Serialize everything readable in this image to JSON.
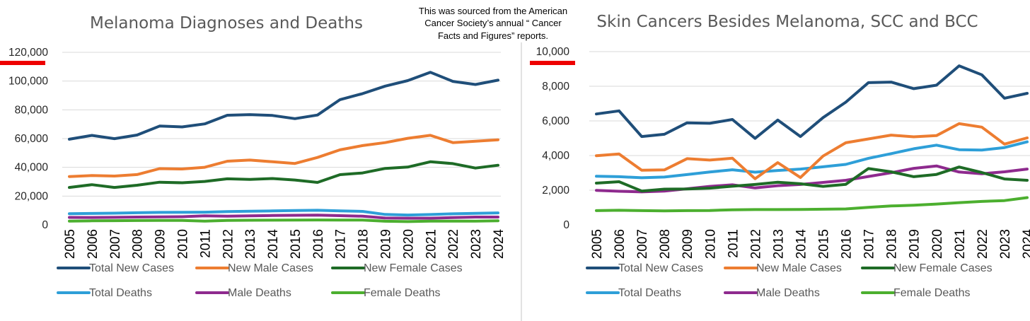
{
  "note": [
    "This was sourced from the American",
    "Cancer Society’s annual “ Cancer",
    "Facts and Figures” reports."
  ],
  "colors": {
    "Total New Cases": "#1f4e79",
    "New Male Cases": "#ed7d31",
    "New Female Cases": "#1e6b26",
    "Total Deaths": "#2e9fd8",
    "Male Deaths": "#8e2a8e",
    "Female Deaths": "#4caf2f",
    "marker": "#ee0000"
  },
  "chart_data": [
    {
      "type": "line",
      "title": "Melanoma Diagnoses and Deaths",
      "xlabel": "",
      "ylabel": "",
      "ylim": [
        0,
        120000
      ],
      "yticks": [
        "0",
        "20,000",
        "40,000",
        "60,000",
        "80,000",
        "100,000",
        "120,000"
      ],
      "grid": "horizontal",
      "legend": "bottom",
      "categories": [
        "2005",
        "2006",
        "2007",
        "2008",
        "2009",
        "2010",
        "2011",
        "2012",
        "2013",
        "2014",
        "2015",
        "2016",
        "2017",
        "2018",
        "2019",
        "2020",
        "2021",
        "2022",
        "2023",
        "2024"
      ],
      "series": [
        {
          "name": "Total New Cases",
          "values": [
            59580,
            62190,
            59940,
            62480,
            68720,
            68130,
            70230,
            76250,
            76690,
            76100,
            73870,
            76380,
            87110,
            91270,
            96480,
            100350,
            106110,
            99780,
            97610,
            100640
          ]
        },
        {
          "name": "New Male Cases",
          "values": [
            33580,
            34260,
            33910,
            34950,
            39080,
            38870,
            40010,
            44250,
            45060,
            43890,
            42670,
            46870,
            52170,
            55150,
            57220,
            60190,
            62260,
            57180,
            58120,
            59170
          ]
        },
        {
          "name": "New Female Cases",
          "values": [
            26000,
            27930,
            26030,
            27530,
            29640,
            29260,
            30220,
            32000,
            31630,
            32210,
            31200,
            29510,
            34940,
            36120,
            39260,
            40160,
            43850,
            42600,
            39490,
            41470
          ]
        },
        {
          "name": "Total Deaths",
          "values": [
            7770,
            7910,
            8110,
            8420,
            8650,
            8700,
            8790,
            9180,
            9480,
            9710,
            9940,
            10130,
            9730,
            9320,
            7230,
            6850,
            7180,
            7650,
            7990,
            8290
          ]
        },
        {
          "name": "Male Deaths",
          "values": [
            5160,
            5100,
            5220,
            5400,
            5550,
            5670,
            6240,
            6060,
            6280,
            6470,
            6640,
            6750,
            6380,
            5990,
            4740,
            4610,
            4600,
            5080,
            5420,
            5430
          ]
        },
        {
          "name": "Female Deaths",
          "values": [
            2610,
            2810,
            2890,
            3020,
            3100,
            3030,
            2550,
            3120,
            3200,
            3240,
            3300,
            3380,
            3350,
            3330,
            2490,
            2240,
            2580,
            2570,
            2570,
            2860
          ]
        }
      ]
    },
    {
      "type": "line",
      "title": "Skin Cancers Besides Melanoma, SCC and BCC",
      "xlabel": "",
      "ylabel": "",
      "ylim": [
        0,
        10000
      ],
      "yticks": [
        "0",
        "2,000",
        "4,000",
        "6,000",
        "8,000",
        "10,000"
      ],
      "grid": "horizontal",
      "legend": "bottom",
      "categories": [
        "2005",
        "2006",
        "2007",
        "2008",
        "2009",
        "2010",
        "2011",
        "2012",
        "2013",
        "2014",
        "2015",
        "2016",
        "2017",
        "2018",
        "2019",
        "2020",
        "2021",
        "2022",
        "2023",
        "2024"
      ],
      "series": [
        {
          "name": "Total New Cases",
          "values": [
            6400,
            6580,
            5100,
            5230,
            5890,
            5860,
            6080,
            4990,
            6050,
            5100,
            6190,
            7080,
            8210,
            8240,
            7860,
            8060,
            9180,
            8660,
            7310,
            7590
          ]
        },
        {
          "name": "New Male Cases",
          "values": [
            3990,
            4090,
            3150,
            3170,
            3820,
            3740,
            3850,
            2660,
            3590,
            2730,
            3970,
            4740,
            4960,
            5180,
            5080,
            5150,
            5840,
            5640,
            4660,
            5020
          ]
        },
        {
          "name": "New Female Cases",
          "values": [
            2410,
            2490,
            1950,
            2060,
            2070,
            2120,
            2230,
            2330,
            2460,
            2370,
            2220,
            2340,
            3250,
            3060,
            2780,
            2910,
            3340,
            3020,
            2650,
            2570
          ]
        },
        {
          "name": "Total Deaths",
          "values": [
            2810,
            2780,
            2720,
            2760,
            2900,
            3050,
            3180,
            3040,
            3140,
            3220,
            3350,
            3490,
            3840,
            4110,
            4390,
            4600,
            4340,
            4320,
            4460,
            4790
          ]
        },
        {
          "name": "Male Deaths",
          "values": [
            1990,
            1940,
            1900,
            1950,
            2080,
            2220,
            2310,
            2130,
            2260,
            2330,
            2450,
            2570,
            2790,
            3010,
            3260,
            3400,
            3050,
            2950,
            3060,
            3220
          ]
        },
        {
          "name": "Female Deaths",
          "values": [
            820,
            840,
            820,
            810,
            820,
            830,
            870,
            880,
            880,
            890,
            900,
            920,
            1010,
            1090,
            1130,
            1200,
            1280,
            1350,
            1400,
            1570
          ]
        }
      ]
    }
  ]
}
